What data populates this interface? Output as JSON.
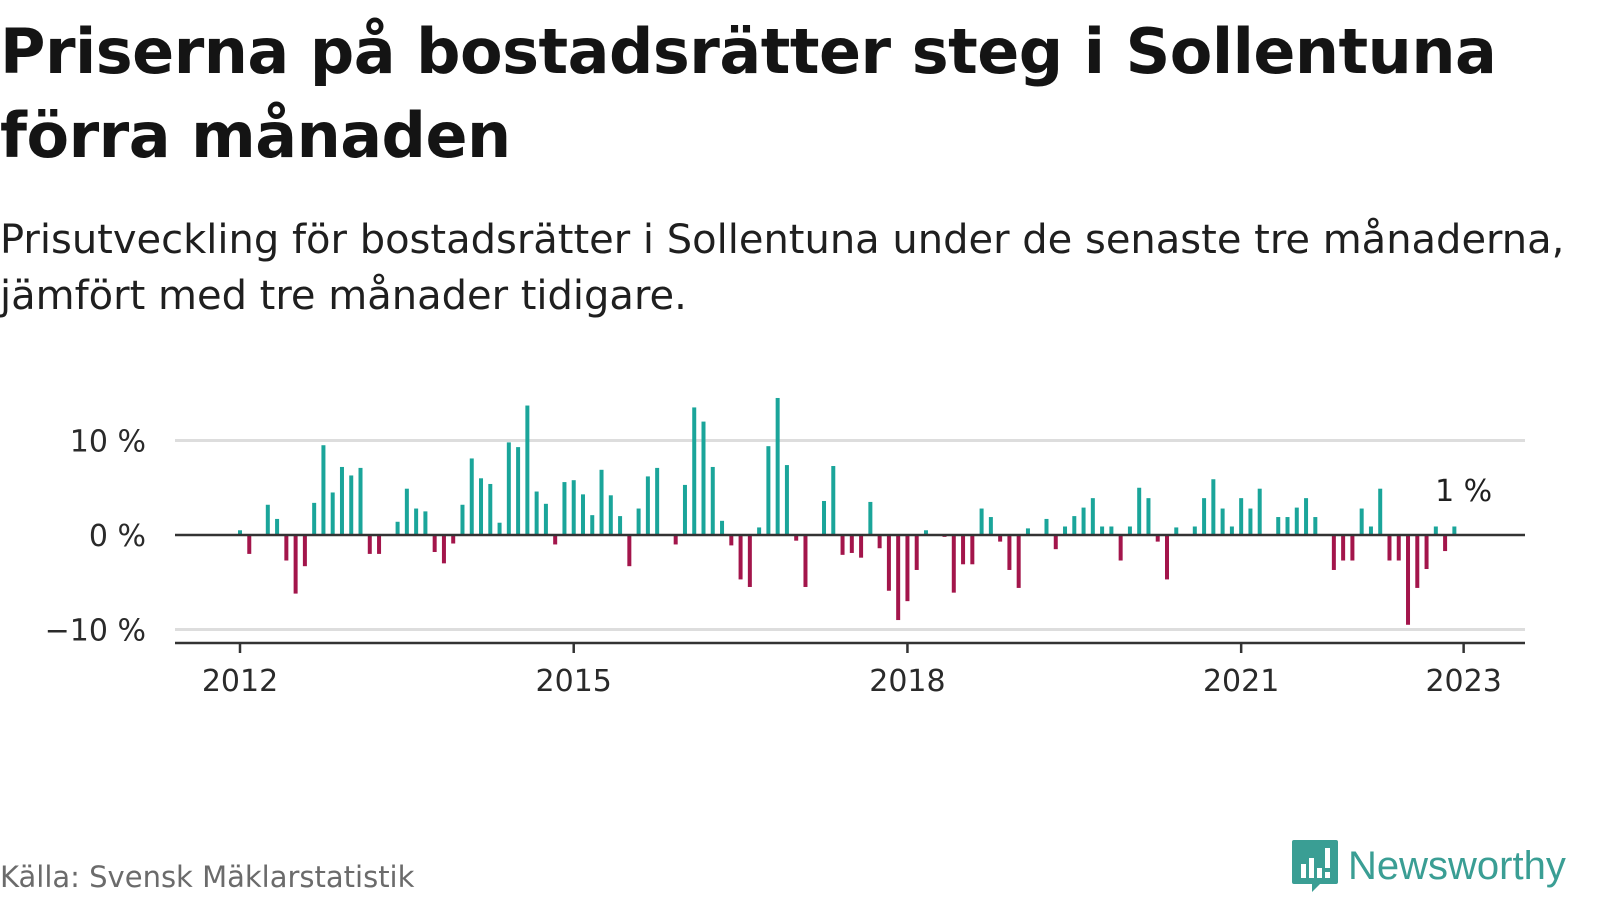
{
  "title": "Priserna på bostadsrätter steg i Sollentuna förra månaden",
  "subtitle": "Prisutveckling för bostadsrätter i Sollentuna under de senaste tre månaderna, jämfört med tre månader tidigare.",
  "source": "Källa: Svensk Mäklarstatistik",
  "brand": {
    "name": "Newsworthy",
    "icon": "newsworthy-logo-icon"
  },
  "colors": {
    "positive": "#1aa59a",
    "negative": "#a3154b",
    "grid": "#dddddd",
    "axis": "#333333",
    "brand": "#3a9e94"
  },
  "chart_data": {
    "type": "bar",
    "x_type": "monthly",
    "y_unit": "%",
    "ylim": [
      -11,
      15
    ],
    "yticks": [
      {
        "value": 10,
        "label": "10 %"
      },
      {
        "value": 0,
        "label": "0 %"
      },
      {
        "value": -10,
        "label": "−10 %"
      }
    ],
    "xticks": [
      {
        "label": "2012",
        "index": 0
      },
      {
        "label": "2015",
        "index": 36
      },
      {
        "label": "2018",
        "index": 72
      },
      {
        "label": "2021",
        "index": 108
      },
      {
        "label": "2023",
        "index": 132
      }
    ],
    "grid": true,
    "annotation": {
      "text": "1 %",
      "index": 132
    },
    "values": [
      0.5,
      -2,
      null,
      3.2,
      1.7,
      -2.7,
      -6.2,
      -3.3,
      3.4,
      9.5,
      4.5,
      7.2,
      6.3,
      7.1,
      -2,
      -2,
      null,
      1.4,
      4.9,
      2.8,
      2.5,
      -1.8,
      -3,
      -0.9,
      3.2,
      8.1,
      6,
      5.4,
      1.3,
      9.8,
      9.3,
      13.7,
      4.6,
      3.3,
      -1,
      5.6,
      5.8,
      4.3,
      2.1,
      6.9,
      4.2,
      2,
      -3.3,
      2.8,
      6.2,
      7.1,
      null,
      -1,
      5.3,
      13.5,
      12,
      7.2,
      1.5,
      -1.1,
      -4.7,
      -5.5,
      0.8,
      9.4,
      14.5,
      7.4,
      -0.6,
      -5.5,
      null,
      3.6,
      7.3,
      -2.1,
      -1.9,
      -2.4,
      3.5,
      -1.4,
      -5.9,
      -9,
      -7,
      -3.7,
      0.5,
      null,
      -0.2,
      -6.1,
      -3.1,
      -3.1,
      2.8,
      1.9,
      -0.7,
      -3.7,
      -5.6,
      0.7,
      null,
      1.7,
      -1.5,
      0.9,
      2,
      2.9,
      3.9,
      0.9,
      0.9,
      -2.7,
      0.9,
      5,
      3.9,
      -0.7,
      -4.7,
      0.8,
      null,
      0.9,
      3.9,
      5.9,
      2.8,
      0.9,
      3.9,
      2.8,
      4.9,
      null,
      1.9,
      1.9,
      2.9,
      3.9,
      1.9,
      null,
      -3.7,
      -2.7,
      -2.7,
      2.8,
      0.9,
      4.9,
      -2.7,
      -2.7,
      -9.5,
      -5.6,
      -3.6,
      0.9,
      -1.7,
      0.9
    ]
  }
}
